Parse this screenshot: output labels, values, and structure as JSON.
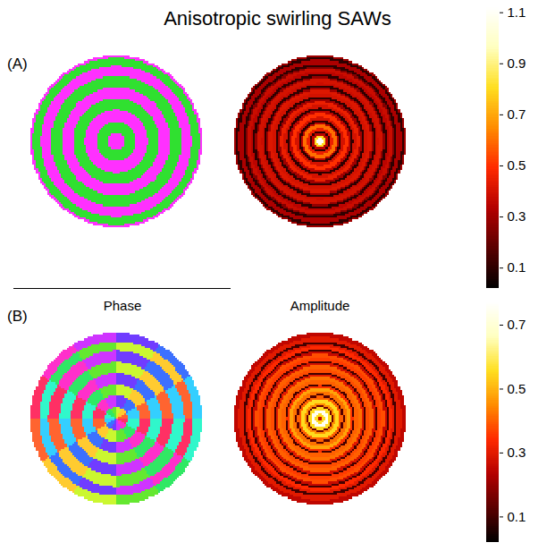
{
  "chart_data": {
    "type": "heatmap",
    "title": "Anisotropic swirling SAWs",
    "columns": [
      "Phase",
      "Amplitude"
    ],
    "panels": [
      {
        "label": "(A)",
        "phase": {
          "range": [
            0,
            360
          ],
          "colors": [
            "#ff3030",
            "#ffff30",
            "#30e030",
            "#30ffff",
            "#4040ff",
            "#ff30ff",
            "#ff3030"
          ],
          "r": [
            0,
            0.1,
            0.23,
            0.37,
            0.5,
            0.63,
            0.76,
            0.88,
            0.97,
            1.0
          ],
          "values": [
            300,
            120,
            300,
            120,
            300,
            120,
            300,
            120,
            300
          ]
        },
        "amplitude": {
          "colors": [
            "#000000",
            "#5a0000",
            "#b40000",
            "#ff2a00",
            "#ff8c00",
            "#ffdf20",
            "#ffffc0",
            "#ffffff"
          ],
          "r": [
            0,
            0.04,
            0.07,
            0.1,
            0.12,
            0.15,
            0.2,
            0.22,
            0.25,
            0.28,
            0.33,
            0.36,
            0.39,
            0.42,
            0.46,
            0.49,
            0.52,
            0.56,
            0.6,
            0.62,
            0.65,
            0.68,
            0.73,
            0.75,
            0.78,
            0.81,
            0.85,
            0.87,
            0.9,
            0.95,
            0.98,
            1.0
          ],
          "values": [
            1.1,
            0.8,
            0.35,
            0.1,
            0.45,
            0.6,
            0.35,
            0.1,
            0.4,
            0.5,
            0.35,
            0.1,
            0.4,
            0.45,
            0.3,
            0.1,
            0.4,
            0.42,
            0.3,
            0.1,
            0.38,
            0.4,
            0.28,
            0.1,
            0.35,
            0.38,
            0.25,
            0.1,
            0.32,
            0.1,
            0.3
          ]
        },
        "colorbar": {
          "range": [
            0.02,
            1.12
          ],
          "ticks": [
            0.1,
            0.3,
            0.5,
            0.7,
            0.9,
            1.1
          ]
        }
      },
      {
        "label": "(B)",
        "phase": {
          "range": [
            0,
            360
          ],
          "colors": [
            "#ff3030",
            "#ffff30",
            "#30e030",
            "#30ffff",
            "#4040ff",
            "#ff30ff",
            "#ff3030"
          ],
          "r": [
            0,
            0.13,
            0.27,
            0.4,
            0.53,
            0.66,
            0.79,
            0.9,
            1.0
          ],
          "theta": [
            0,
            30,
            60,
            90,
            120,
            150,
            180,
            210,
            240,
            270,
            300,
            330,
            360
          ],
          "values": [
            [
              15,
              45,
              75,
              105,
              135,
              165,
              195,
              225,
              255,
              285,
              315,
              345
            ],
            [
              195,
              225,
              255,
              285,
              315,
              345,
              15,
              45,
              75,
              105,
              135,
              165
            ],
            [
              15,
              45,
              75,
              105,
              135,
              165,
              195,
              225,
              255,
              285,
              315,
              345
            ],
            [
              195,
              225,
              255,
              285,
              315,
              345,
              15,
              45,
              75,
              105,
              135,
              165
            ],
            [
              15,
              45,
              75,
              105,
              135,
              165,
              195,
              225,
              255,
              285,
              315,
              345
            ],
            [
              195,
              225,
              255,
              285,
              315,
              345,
              15,
              45,
              75,
              105,
              135,
              165
            ],
            [
              15,
              45,
              75,
              105,
              135,
              165,
              195,
              225,
              255,
              285,
              315,
              345
            ],
            [
              195,
              225,
              255,
              285,
              315,
              345,
              15,
              45,
              75,
              105,
              135,
              165
            ]
          ]
        },
        "amplitude": {
          "colors": [
            "#000000",
            "#5a0000",
            "#b40000",
            "#ff2a00",
            "#ff8c00",
            "#ffdf20",
            "#ffffc0",
            "#ffffff"
          ],
          "r": [
            0,
            0.03,
            0.06,
            0.1,
            0.13,
            0.15,
            0.18,
            0.23,
            0.26,
            0.28,
            0.32,
            0.36,
            0.39,
            0.41,
            0.45,
            0.49,
            0.52,
            0.54,
            0.58,
            0.62,
            0.65,
            0.67,
            0.71,
            0.75,
            0.78,
            0.8,
            0.84,
            0.87,
            0.9,
            0.95,
            1.0
          ],
          "values": [
            0.25,
            0.55,
            0.75,
            0.55,
            0.15,
            0.45,
            0.55,
            0.4,
            0.12,
            0.42,
            0.48,
            0.35,
            0.1,
            0.4,
            0.42,
            0.3,
            0.1,
            0.38,
            0.4,
            0.28,
            0.1,
            0.36,
            0.38,
            0.26,
            0.1,
            0.34,
            0.3,
            0.1,
            0.3,
            0.25
          ]
        },
        "colorbar": {
          "range": [
            0.02,
            0.77
          ],
          "ticks": [
            0.1,
            0.3,
            0.5,
            0.7
          ]
        }
      }
    ]
  }
}
